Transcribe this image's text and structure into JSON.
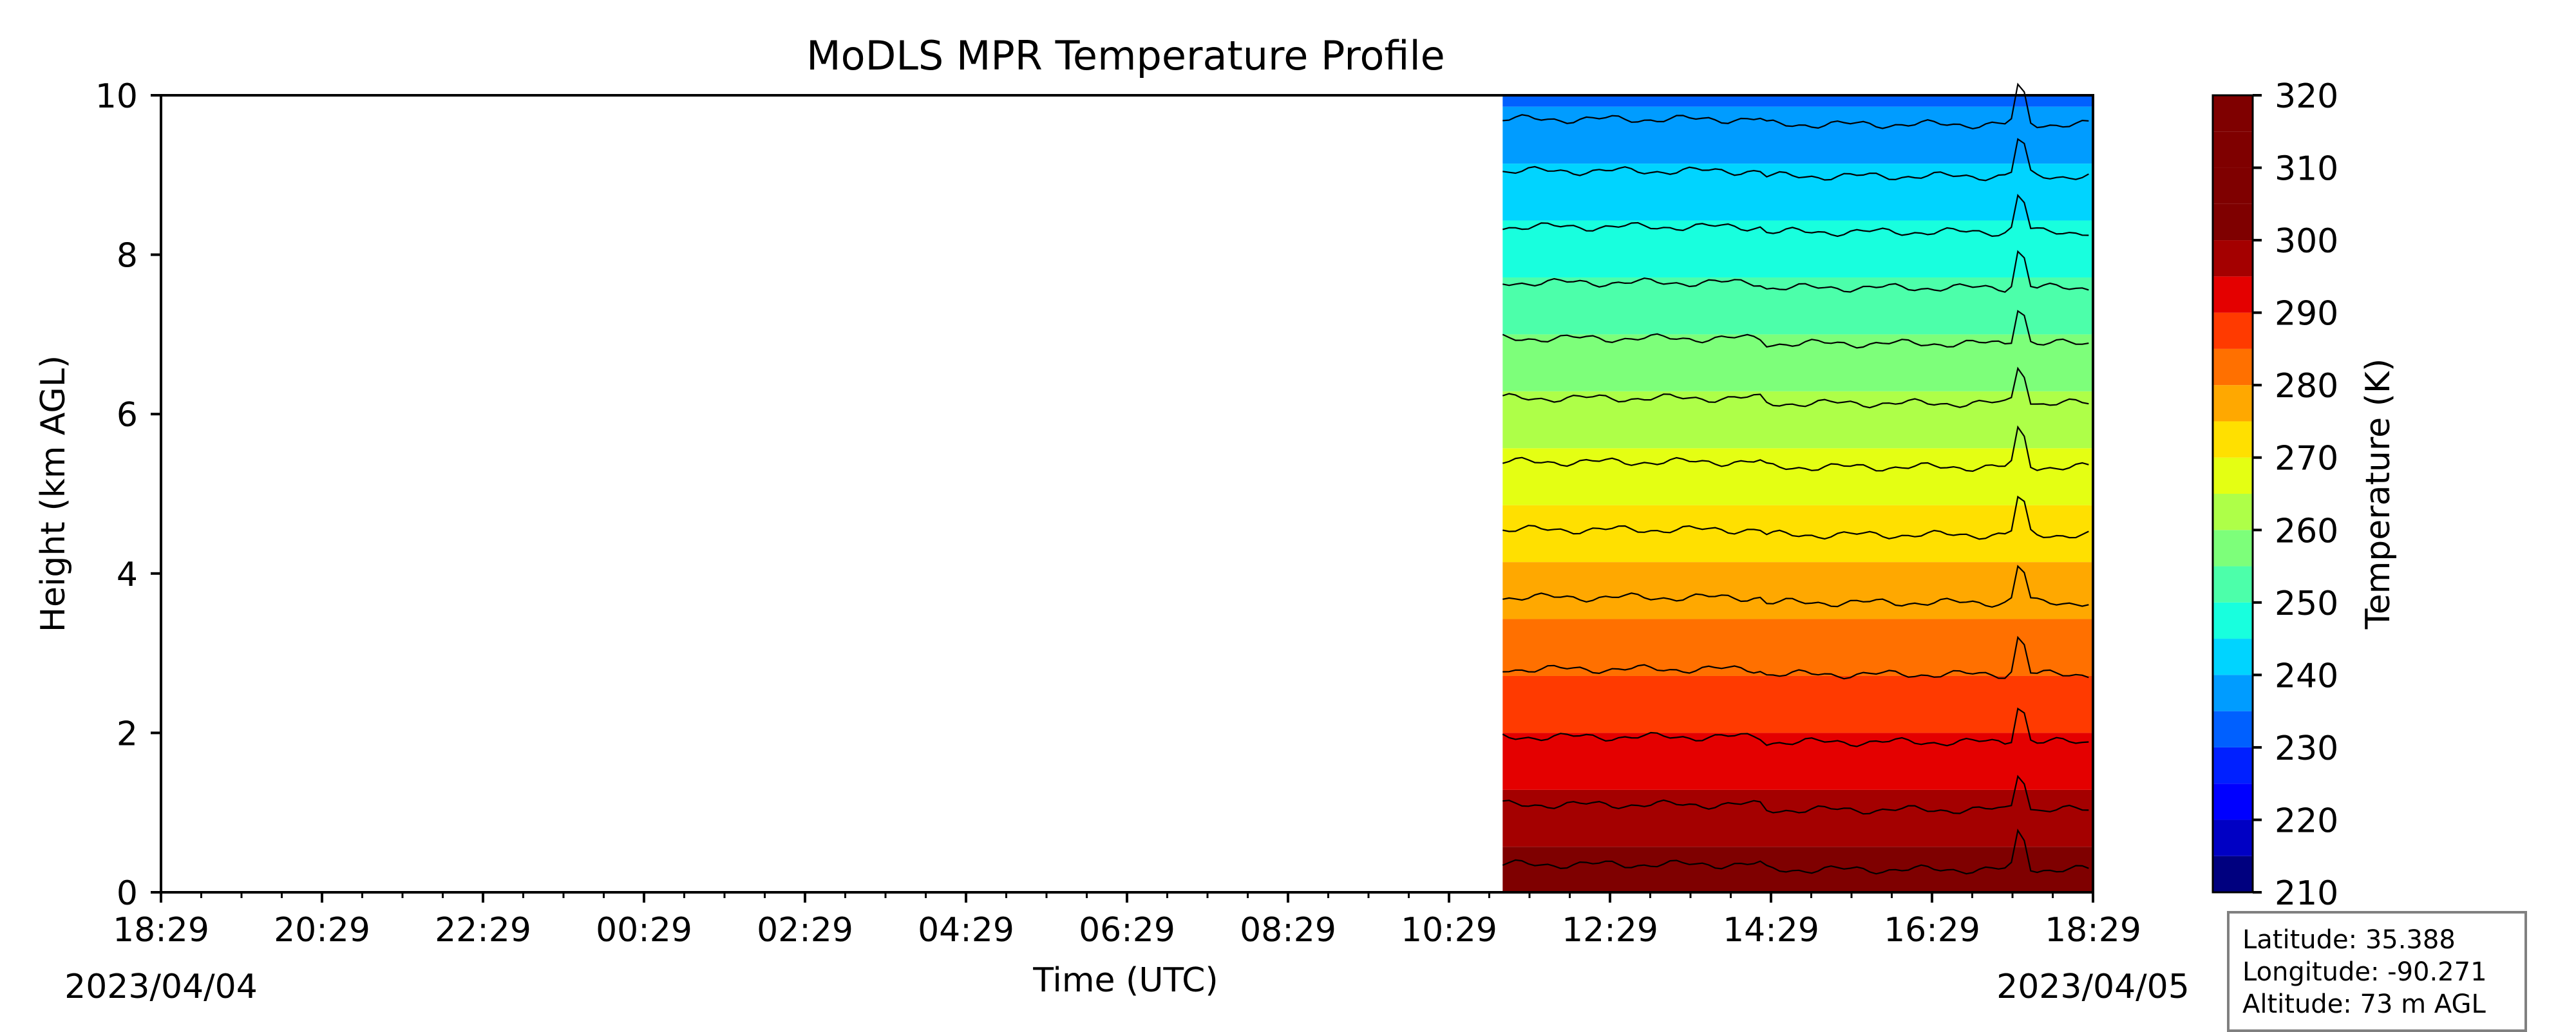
{
  "chart_data": {
    "type": "heatmap",
    "title": "MoDLS MPR Temperature Profile",
    "xlabel": "Time (UTC)",
    "ylabel": "Height (km AGL)",
    "x_start": "2023-04-04T18:29Z",
    "x_end": "2023-04-05T18:29Z",
    "x_tick_labels": [
      "18:29",
      "20:29",
      "22:29",
      "00:29",
      "02:29",
      "04:29",
      "06:29",
      "08:29",
      "10:29",
      "12:29",
      "14:29",
      "16:29",
      "18:29"
    ],
    "x_date_left": "2023/04/04",
    "x_date_right": "2023/04/05",
    "ylim": [
      0,
      10
    ],
    "y_ticks": [
      0,
      2,
      4,
      6,
      8,
      10
    ],
    "data_start": "2023-04-05T11:09Z",
    "colorbar": {
      "label": "Temperature (K)",
      "range": [
        210,
        320
      ],
      "step": 5,
      "ticks": [
        210,
        220,
        230,
        240,
        250,
        260,
        270,
        280,
        290,
        300,
        310,
        320
      ],
      "colors": [
        "#00007f",
        "#0000c4",
        "#0000ff",
        "#0020ff",
        "#0060ff",
        "#009cff",
        "#00d4ff",
        "#18ffde",
        "#4cffaa",
        "#7dff7a",
        "#aeff48",
        "#e4ff13",
        "#ffe000",
        "#ffa800",
        "#ff7000",
        "#ff3a00",
        "#e40000",
        "#a40000",
        "#7f0000",
        "#7f0000",
        "#7f0000",
        "#7f0000"
      ]
    },
    "surface_temperature_K": 304,
    "lapse_rate_K_per_km": 7,
    "contour_heights_km": [
      0.35,
      1.1,
      1.95,
      2.8,
      3.7,
      4.55,
      5.4,
      6.2,
      6.95,
      7.65,
      8.35,
      9.05,
      9.7
    ]
  },
  "info": {
    "latitude": "Latitude: 35.388",
    "longitude": "Longitude: -90.271",
    "altitude": "Altitude: 73 m AGL"
  }
}
